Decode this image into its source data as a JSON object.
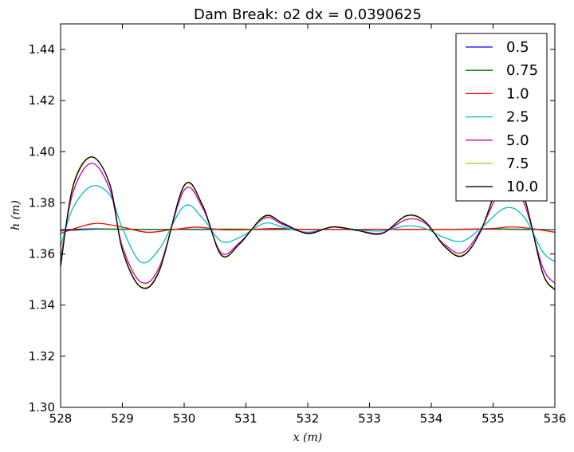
{
  "chart_data": {
    "type": "line",
    "title": "Dam Break: o2 dx = 0.0390625",
    "xlabel": "x (m)",
    "ylabel": "h (m)",
    "xlim": [
      528,
      536
    ],
    "ylim": [
      1.3,
      1.45
    ],
    "x_ticks": [
      528,
      529,
      530,
      531,
      532,
      533,
      534,
      535,
      536
    ],
    "y_ticks": [
      1.3,
      1.32,
      1.34,
      1.36,
      1.38,
      1.4,
      1.42,
      1.44
    ],
    "x_tick_labels": [
      "528",
      "529",
      "530",
      "531",
      "532",
      "533",
      "534",
      "535",
      "536"
    ],
    "y_tick_labels": [
      "1.30",
      "1.32",
      "1.34",
      "1.36",
      "1.38",
      "1.40",
      "1.42",
      "1.44"
    ],
    "grid": false,
    "legend_position": "top-right",
    "series": [
      {
        "name": "0.5",
        "color": "#0000ff",
        "x": [
          528,
          528.5,
          529,
          530,
          531,
          532,
          533,
          534,
          535,
          536
        ],
        "y": [
          1.3695,
          1.3698,
          1.3697,
          1.3696,
          1.3696,
          1.3696,
          1.3696,
          1.3696,
          1.3697,
          1.3695
        ]
      },
      {
        "name": "0.75",
        "color": "#008000",
        "x": [
          528,
          528.6,
          529.3,
          530,
          531,
          532,
          533,
          534,
          535,
          536
        ],
        "y": [
          1.369,
          1.3697,
          1.3696,
          1.3697,
          1.3697,
          1.3696,
          1.3696,
          1.3696,
          1.3698,
          1.3695
        ]
      },
      {
        "name": "1.0",
        "color": "#ff0000",
        "x": [
          528,
          528.3,
          528.6,
          529.0,
          529.4,
          529.8,
          530.2,
          530.6,
          531.0,
          531.5,
          532,
          533,
          534,
          534.5,
          535,
          535.3,
          535.6,
          536
        ],
        "y": [
          1.368,
          1.3705,
          1.372,
          1.3705,
          1.3685,
          1.3695,
          1.3705,
          1.3695,
          1.3695,
          1.37,
          1.3696,
          1.3696,
          1.3696,
          1.3696,
          1.37,
          1.3706,
          1.37,
          1.3685
        ]
      },
      {
        "name": "2.5",
        "color": "#00bfbf",
        "x": [
          528,
          528.2,
          528.5,
          528.8,
          529.0,
          529.3,
          529.6,
          530.0,
          530.3,
          530.6,
          530.9,
          531.3,
          531.6,
          532.0,
          532.4,
          532.8,
          533.2,
          533.6,
          533.9,
          534.2,
          534.5,
          534.8,
          535.2,
          535.5,
          535.8,
          536
        ],
        "y": [
          1.363,
          1.378,
          1.3865,
          1.383,
          1.37,
          1.3568,
          1.362,
          1.3787,
          1.374,
          1.365,
          1.3665,
          1.372,
          1.3705,
          1.3685,
          1.3705,
          1.3695,
          1.369,
          1.371,
          1.37,
          1.3665,
          1.365,
          1.37,
          1.378,
          1.3745,
          1.361,
          1.357
        ]
      },
      {
        "name": "5.0",
        "color": "#bf00bf",
        "x": [
          528,
          528.2,
          528.5,
          528.8,
          529.0,
          529.3,
          529.6,
          530.0,
          530.3,
          530.6,
          530.9,
          531.3,
          531.6,
          532.0,
          532.4,
          532.8,
          533.2,
          533.6,
          533.9,
          534.2,
          534.5,
          534.8,
          535.2,
          535.5,
          535.8,
          536
        ],
        "y": [
          1.358,
          1.384,
          1.3955,
          1.385,
          1.363,
          1.349,
          1.355,
          1.385,
          1.378,
          1.3605,
          1.3645,
          1.374,
          1.3715,
          1.3682,
          1.3705,
          1.3693,
          1.3682,
          1.3735,
          1.372,
          1.364,
          1.3605,
          1.3695,
          1.388,
          1.38,
          1.355,
          1.3485
        ]
      },
      {
        "name": "7.5",
        "color": "#bfbf00",
        "x": [
          528,
          528.2,
          528.5,
          528.8,
          529.0,
          529.3,
          529.6,
          530.0,
          530.3,
          530.6,
          530.9,
          531.3,
          531.6,
          532.0,
          532.4,
          532.8,
          533.2,
          533.6,
          533.9,
          534.2,
          534.5,
          534.8,
          535.2,
          535.5,
          535.8,
          536
        ],
        "y": [
          1.356,
          1.386,
          1.3978,
          1.387,
          1.362,
          1.3472,
          1.354,
          1.3865,
          1.3788,
          1.3598,
          1.364,
          1.3745,
          1.372,
          1.368,
          1.3706,
          1.3692,
          1.368,
          1.3748,
          1.3725,
          1.3635,
          1.3595,
          1.369,
          1.392,
          1.382,
          1.353,
          1.3462
        ]
      },
      {
        "name": "10.0",
        "color": "#000000",
        "x": [
          528,
          528.2,
          528.5,
          528.8,
          529.0,
          529.3,
          529.6,
          530.0,
          530.3,
          530.6,
          530.9,
          531.3,
          531.6,
          532.0,
          532.4,
          532.8,
          533.2,
          533.6,
          533.9,
          534.2,
          534.5,
          534.8,
          535.2,
          535.5,
          535.8,
          536
        ],
        "y": [
          1.355,
          1.3865,
          1.398,
          1.387,
          1.3615,
          1.347,
          1.3535,
          1.3868,
          1.379,
          1.3595,
          1.364,
          1.3748,
          1.372,
          1.368,
          1.3706,
          1.3692,
          1.368,
          1.375,
          1.3727,
          1.3633,
          1.3592,
          1.369,
          1.393,
          1.3825,
          1.3528,
          1.346
        ]
      }
    ]
  }
}
